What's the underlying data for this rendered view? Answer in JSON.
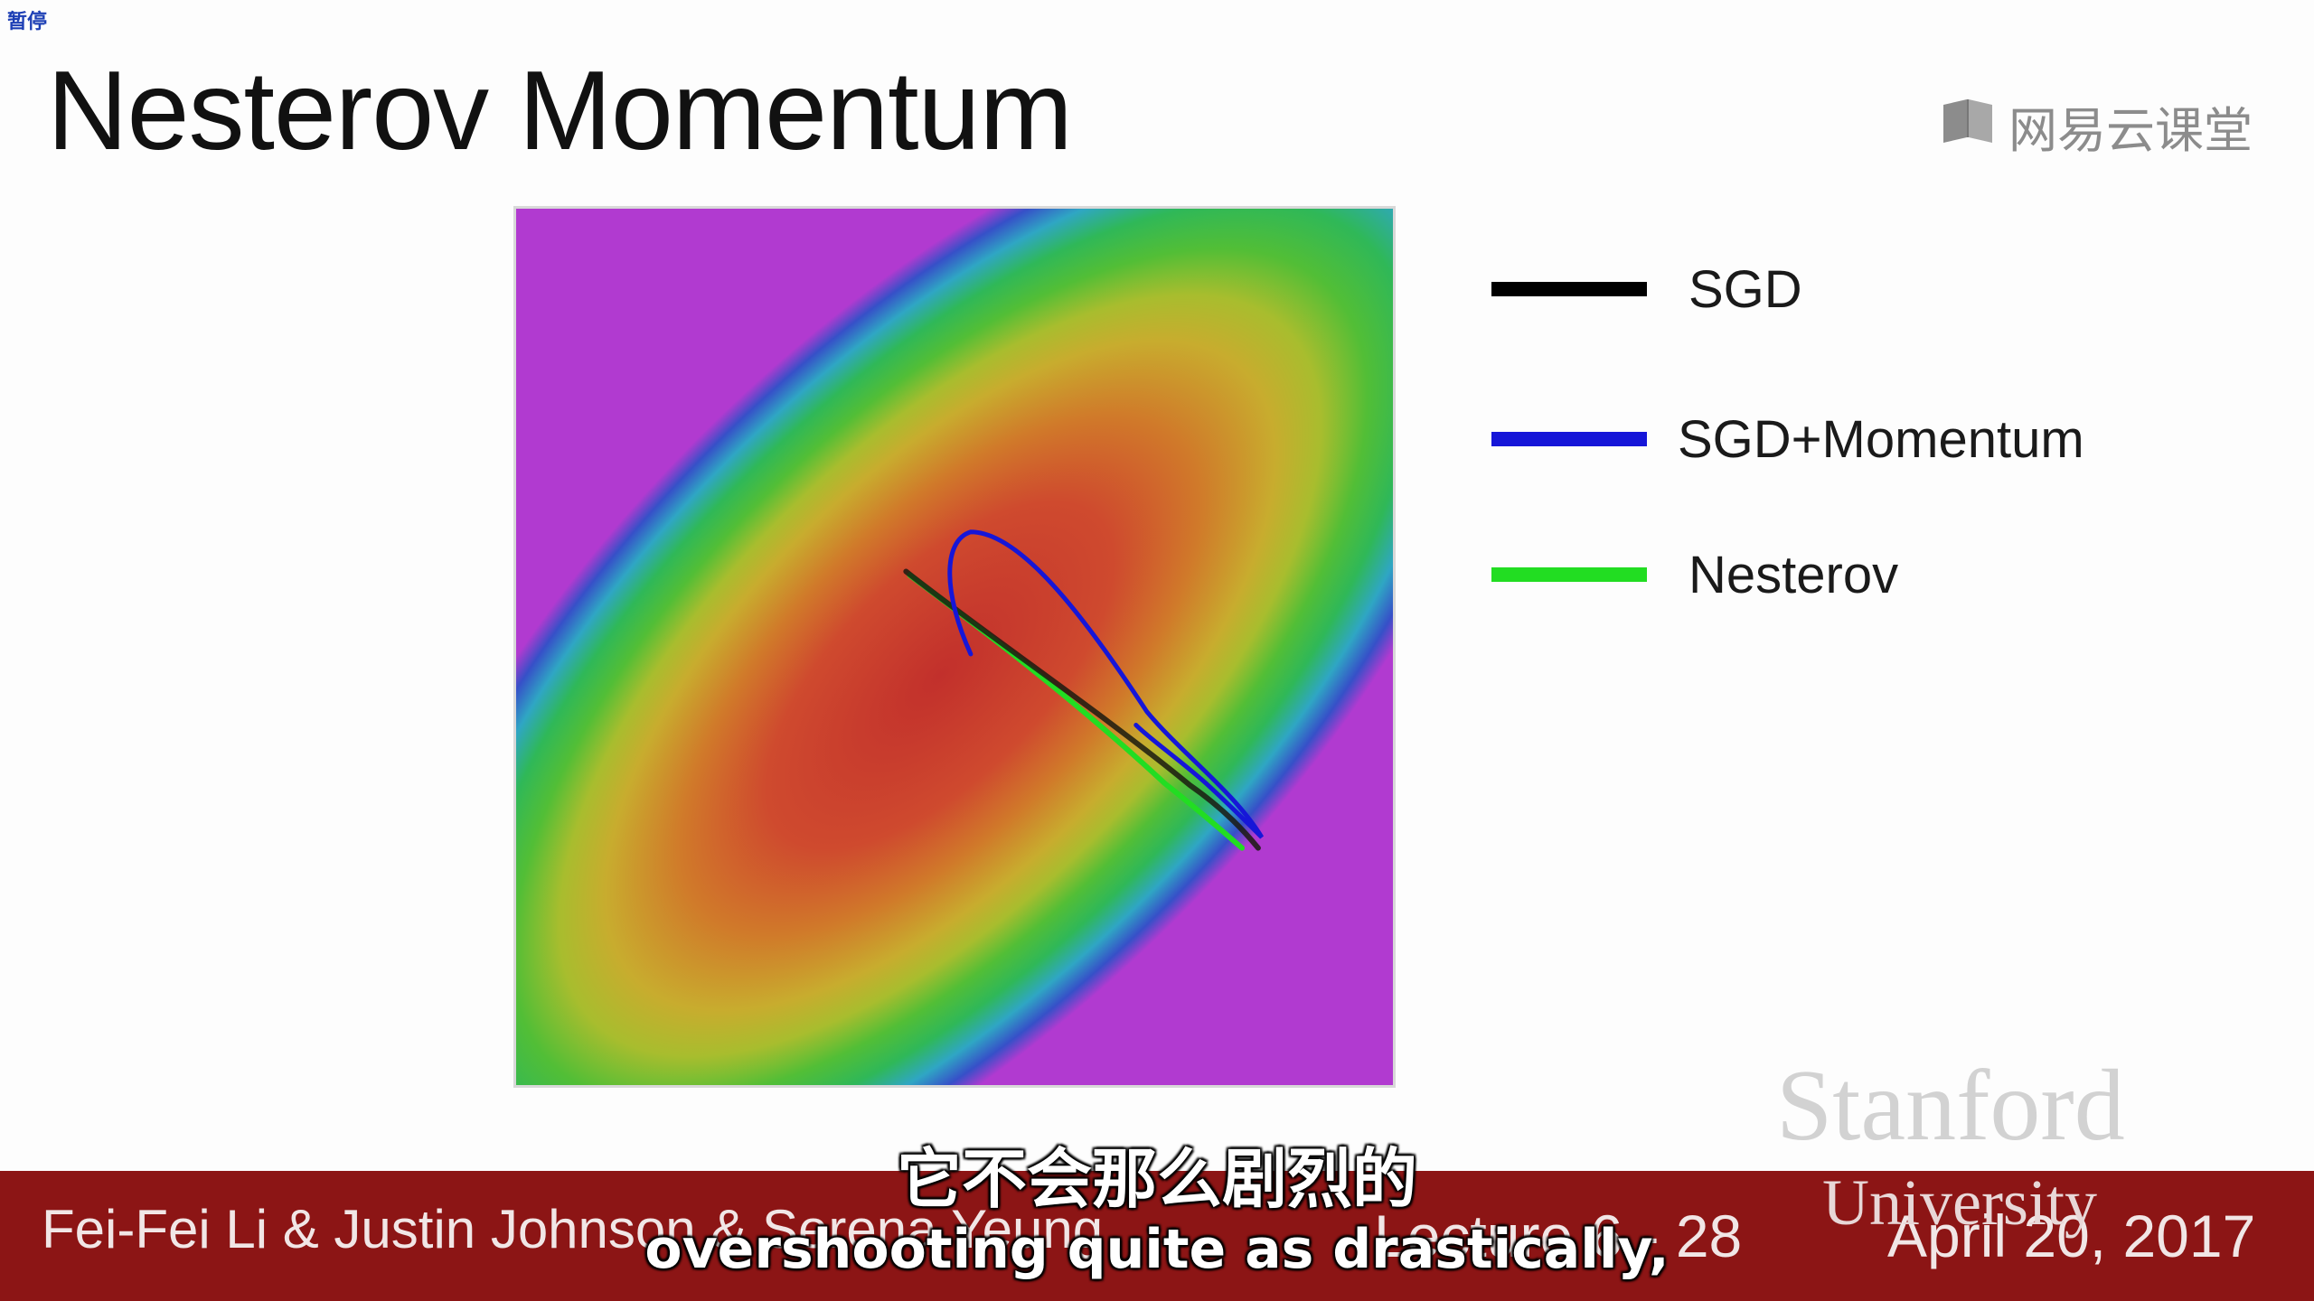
{
  "status": {
    "pause_label": "暂停"
  },
  "slide": {
    "title": "Nesterov Momentum",
    "watermark_text": "网易云课堂",
    "watermark_icon": "open-book-icon"
  },
  "legend": [
    {
      "label": "SGD",
      "color": "#000000"
    },
    {
      "label": "SGD+Momentum",
      "color": "#1616d8"
    },
    {
      "label": "Nesterov",
      "color": "#22dd22"
    }
  ],
  "footer": {
    "authors": "Fei-Fei Li & Justin Johnson & Serena Yeung",
    "lecture": "Lecture 6 - 28",
    "date": "April 20, 2017",
    "institution": "Stanford",
    "institution_sub": "University"
  },
  "subtitles": {
    "chinese": "它不会那么剧烈的",
    "english": "overshooting quite as drastically,"
  },
  "colors": {
    "footer_bg": "#8c1515",
    "contour_center": "#c2302c"
  }
}
